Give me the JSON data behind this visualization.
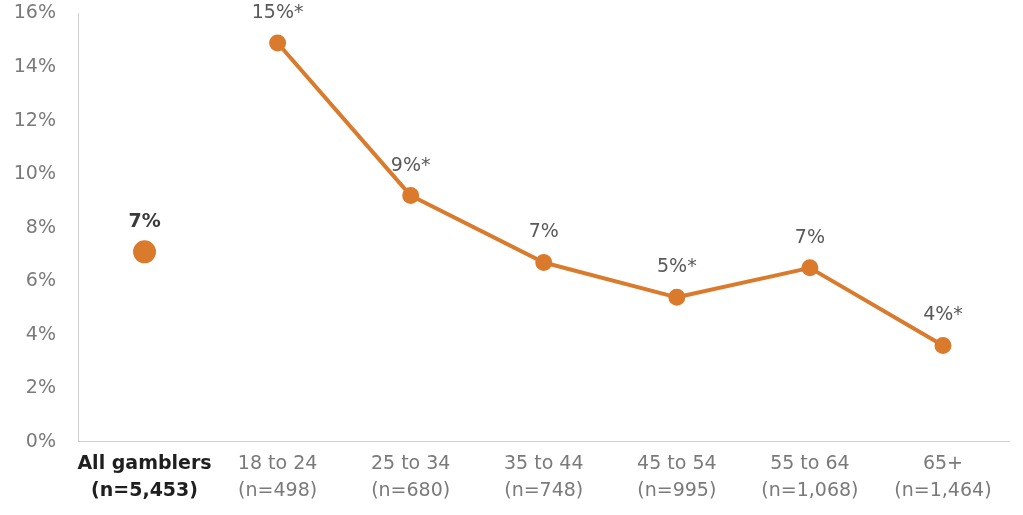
{
  "chart_data": {
    "type": "line",
    "categories": [
      "All gamblers\n(n=5,453)",
      "18 to 24\n(n=498)",
      "25 to 34\n(n=680)",
      "35 to 44\n(n=748)",
      "45 to 54\n(n=995)",
      "55 to 64\n(n=1,068)",
      "65+\n(n=1,464)"
    ],
    "series": [
      {
        "type": "scatter",
        "color": "#da7a2c",
        "values": [
          7.1,
          null,
          null,
          null,
          null,
          null,
          null
        ],
        "value_labels": [
          "7%",
          null,
          null,
          null,
          null,
          null,
          null
        ]
      },
      {
        "color": "#da7a2c",
        "values": [
          null,
          14.9,
          9.2,
          6.7,
          5.4,
          6.5,
          3.6
        ],
        "value_labels": [
          null,
          "15%*",
          "9%*",
          "7%",
          "5%*",
          "7%",
          "4%*"
        ]
      }
    ],
    "ylim": [
      0,
      16
    ],
    "yticks": [
      {
        "value": 0,
        "label": "0%"
      },
      {
        "value": 2,
        "label": "2%"
      },
      {
        "value": 4,
        "label": "4%"
      },
      {
        "value": 6,
        "label": "6%"
      },
      {
        "value": 8,
        "label": "8%"
      },
      {
        "value": 10,
        "label": "10%"
      },
      {
        "value": 12,
        "label": "12%"
      },
      {
        "value": 14,
        "label": "14%"
      },
      {
        "value": 16,
        "label": "16%"
      }
    ],
    "grid": false,
    "marker": "circle"
  }
}
